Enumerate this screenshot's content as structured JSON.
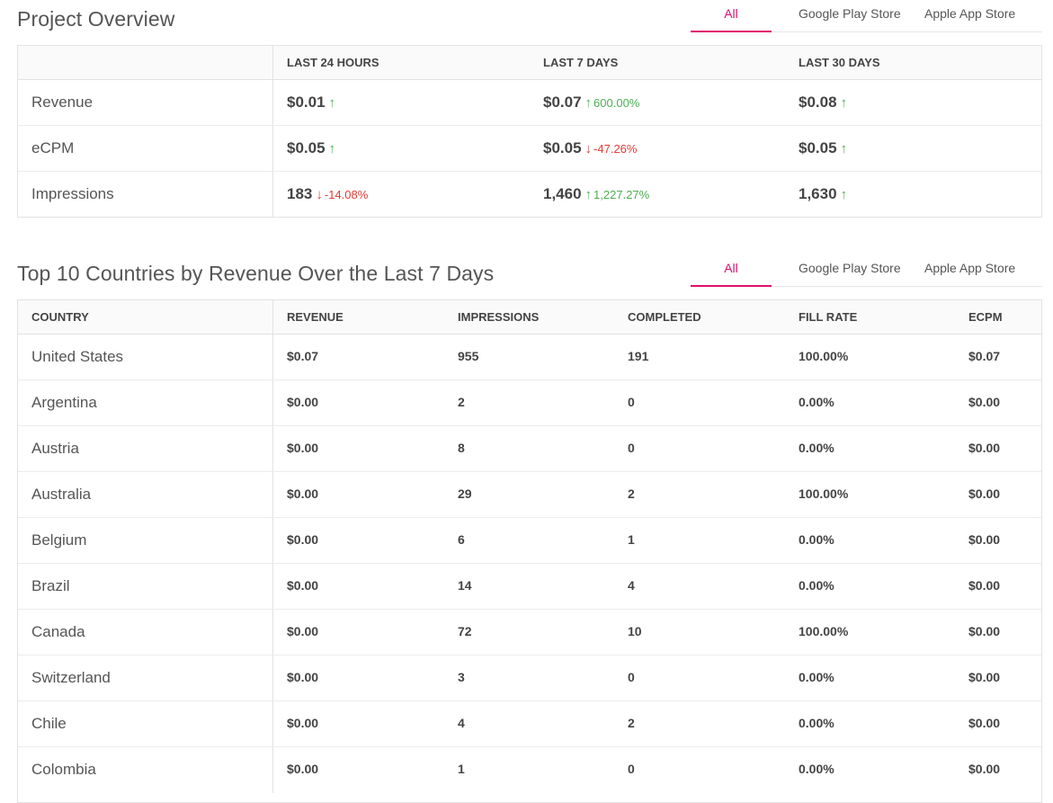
{
  "overview": {
    "title": "Project Overview",
    "tabs": [
      "All",
      "Google Play Store",
      "Apple App Store"
    ],
    "columns": [
      "LAST 24 HOURS",
      "LAST 7 DAYS",
      "LAST 30 DAYS"
    ],
    "rows": [
      {
        "label": "Revenue",
        "cells": [
          {
            "value": "$0.01",
            "dir": "up",
            "pct": ""
          },
          {
            "value": "$0.07",
            "dir": "up",
            "pct": "600.00%"
          },
          {
            "value": "$0.08",
            "dir": "up",
            "pct": ""
          }
        ]
      },
      {
        "label": "eCPM",
        "cells": [
          {
            "value": "$0.05",
            "dir": "up",
            "pct": ""
          },
          {
            "value": "$0.05",
            "dir": "down",
            "pct": "-47.26%"
          },
          {
            "value": "$0.05",
            "dir": "up",
            "pct": ""
          }
        ]
      },
      {
        "label": "Impressions",
        "cells": [
          {
            "value": "183",
            "dir": "down",
            "pct": "-14.08%"
          },
          {
            "value": "1,460",
            "dir": "up",
            "pct": "1,227.27%"
          },
          {
            "value": "1,630",
            "dir": "up",
            "pct": ""
          }
        ]
      }
    ]
  },
  "countries": {
    "title": "Top 10 Countries by Revenue Over the Last 7 Days",
    "tabs": [
      "All",
      "Google Play Store",
      "Apple App Store"
    ],
    "columns": [
      "COUNTRY",
      "REVENUE",
      "IMPRESSIONS",
      "COMPLETED",
      "FILL RATE",
      "ECPM"
    ],
    "rows": [
      [
        "United States",
        "$0.07",
        "955",
        "191",
        "100.00%",
        "$0.07"
      ],
      [
        "Argentina",
        "$0.00",
        "2",
        "0",
        "0.00%",
        "$0.00"
      ],
      [
        "Austria",
        "$0.00",
        "8",
        "0",
        "0.00%",
        "$0.00"
      ],
      [
        "Australia",
        "$0.00",
        "29",
        "2",
        "100.00%",
        "$0.00"
      ],
      [
        "Belgium",
        "$0.00",
        "6",
        "1",
        "0.00%",
        "$0.00"
      ],
      [
        "Brazil",
        "$0.00",
        "14",
        "4",
        "0.00%",
        "$0.00"
      ],
      [
        "Canada",
        "$0.00",
        "72",
        "10",
        "100.00%",
        "$0.00"
      ],
      [
        "Switzerland",
        "$0.00",
        "3",
        "0",
        "0.00%",
        "$0.00"
      ],
      [
        "Chile",
        "$0.00",
        "4",
        "2",
        "0.00%",
        "$0.00"
      ],
      [
        "Colombia",
        "$0.00",
        "1",
        "0",
        "0.00%",
        "$0.00"
      ]
    ]
  },
  "colors": {
    "accent": "#e0106e",
    "up": "#4caf50",
    "down": "#e53935"
  },
  "icons": {
    "up": "arrow-up-icon",
    "down": "arrow-down-icon"
  }
}
